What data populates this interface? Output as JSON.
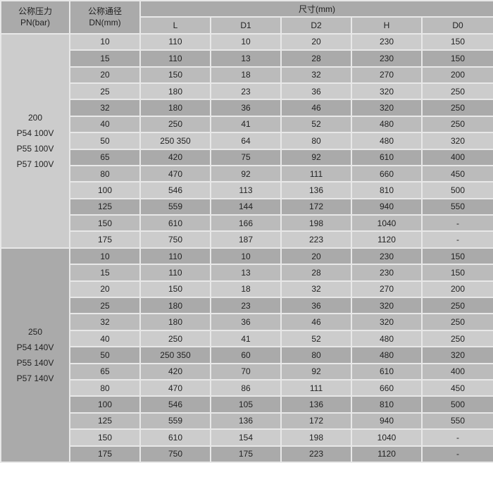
{
  "header": {
    "pn_label": "公称压力",
    "pn_unit": "PN(bar)",
    "dn_label": "公称通径",
    "dn_unit": "DN(mm)",
    "dims_label": "尺寸(mm)",
    "columns": [
      "L",
      "D1",
      "D2",
      "H",
      "D0"
    ]
  },
  "sections": [
    {
      "pn": [
        "200",
        "P54 100V",
        "P55 100V",
        "P57 100V"
      ],
      "rows": [
        [
          "10",
          "110",
          "10",
          "20",
          "230",
          "150"
        ],
        [
          "15",
          "110",
          "13",
          "28",
          "230",
          "150"
        ],
        [
          "20",
          "150",
          "18",
          "32",
          "270",
          "200"
        ],
        [
          "25",
          "180",
          "23",
          "36",
          "320",
          "250"
        ],
        [
          "32",
          "180",
          "36",
          "46",
          "320",
          "250"
        ],
        [
          "40",
          "250",
          "41",
          "52",
          "480",
          "250"
        ],
        [
          "50",
          "250 350",
          "64",
          "80",
          "480",
          "320"
        ],
        [
          "65",
          "420",
          "75",
          "92",
          "610",
          "400"
        ],
        [
          "80",
          "470",
          "92",
          "111",
          "660",
          "450"
        ],
        [
          "100",
          "546",
          "113",
          "136",
          "810",
          "500"
        ],
        [
          "125",
          "559",
          "144",
          "172",
          "940",
          "550"
        ],
        [
          "150",
          "610",
          "166",
          "198",
          "1040",
          "-"
        ],
        [
          "175",
          "750",
          "187",
          "223",
          "1120",
          "-"
        ]
      ]
    },
    {
      "pn": [
        "250",
        "P54 140V",
        "P55 140V",
        "P57 140V"
      ],
      "rows": [
        [
          "10",
          "110",
          "10",
          "20",
          "230",
          "150"
        ],
        [
          "15",
          "110",
          "13",
          "28",
          "230",
          "150"
        ],
        [
          "20",
          "150",
          "18",
          "32",
          "270",
          "200"
        ],
        [
          "25",
          "180",
          "23",
          "36",
          "320",
          "250"
        ],
        [
          "32",
          "180",
          "36",
          "46",
          "320",
          "250"
        ],
        [
          "40",
          "250",
          "41",
          "52",
          "480",
          "250"
        ],
        [
          "50",
          "250 350",
          "60",
          "80",
          "480",
          "320"
        ],
        [
          "65",
          "420",
          "70",
          "92",
          "610",
          "400"
        ],
        [
          "80",
          "470",
          "86",
          "111",
          "660",
          "450"
        ],
        [
          "100",
          "546",
          "105",
          "136",
          "810",
          "500"
        ],
        [
          "125",
          "559",
          "136",
          "172",
          "940",
          "550"
        ],
        [
          "150",
          "610",
          "154",
          "198",
          "1040",
          "-"
        ],
        [
          "175",
          "750",
          "175",
          "223",
          "1120",
          "-"
        ]
      ]
    }
  ]
}
